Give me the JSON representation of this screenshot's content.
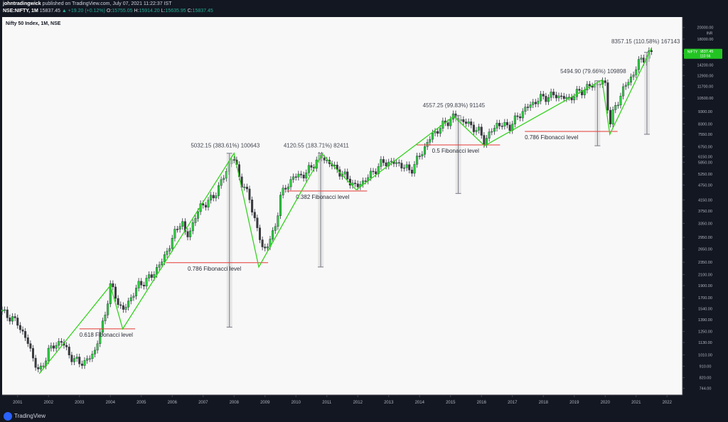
{
  "header": {
    "line1_user": "johntradingwick",
    "line1_rest": " published on TradingView.com, July 07, 2021 11:22:37 IST",
    "symbol": "NSE:NIFTY, 1M",
    "last": "15837.45",
    "change": "▲ +19.20 (+0.12%)",
    "open_label": "O:",
    "open": "15755.05",
    "high_label": "H:",
    "high": "15914.20",
    "low_label": "L:",
    "low": "15635.95",
    "close_label": "C:",
    "close": "15837.45"
  },
  "chart_data": {
    "type": "candlestick",
    "title": "Nifty 50 Index, 1M, NSE",
    "y_scale": "log",
    "ylim": [
      700,
      22000
    ],
    "y_axis_currency": "INR",
    "x_labels": [
      "2001",
      "2002",
      "2003",
      "2004",
      "2005",
      "2006",
      "2007",
      "2008",
      "2009",
      "2010",
      "2011",
      "2012",
      "2013",
      "2014",
      "2015",
      "2016",
      "2017",
      "2018",
      "2019",
      "2020",
      "2021",
      "2022"
    ],
    "xlim": [
      2000.5,
      2022.5
    ],
    "y_ticks": [
      "20000.00",
      "18000.00",
      "15800.00",
      "14200.00",
      "12900.00",
      "11700.00",
      "10500.00",
      "9300.00",
      "8300.00",
      "7550.00",
      "6750.00",
      "6150.00",
      "5850.00",
      "5250.00",
      "4750.00",
      "4150.00",
      "3750.00",
      "3350.00",
      "2950.00",
      "2650.00",
      "2350.00",
      "2100.00",
      "1900.00",
      "1700.00",
      "1540.00",
      "1390.00",
      "1250.00",
      "1130.00",
      "1010.00",
      "910.00",
      "820.00",
      "744.00"
    ],
    "last_price_label": "15837.45",
    "last_price_sub": "110 56",
    "price_axis_tag": "NIFTY",
    "price_path": [
      [
        2000.5,
        1500
      ],
      [
        2001.0,
        1350
      ],
      [
        2001.3,
        1150
      ],
      [
        2001.7,
        850
      ],
      [
        2002.0,
        1050
      ],
      [
        2002.4,
        1150
      ],
      [
        2002.8,
        960
      ],
      [
        2003.2,
        940
      ],
      [
        2003.5,
        1050
      ],
      [
        2003.8,
        1400
      ],
      [
        2004.0,
        1900
      ],
      [
        2004.4,
        1500
      ],
      [
        2004.6,
        1650
      ],
      [
        2004.9,
        1900
      ],
      [
        2005.3,
        2050
      ],
      [
        2005.7,
        2400
      ],
      [
        2006.0,
        2900
      ],
      [
        2006.3,
        3500
      ],
      [
        2006.45,
        2900
      ],
      [
        2006.9,
        3900
      ],
      [
        2007.3,
        4200
      ],
      [
        2007.7,
        5200
      ],
      [
        2007.95,
        6250
      ],
      [
        2008.2,
        5000
      ],
      [
        2008.5,
        4200
      ],
      [
        2008.8,
        3000
      ],
      [
        2008.95,
        2600
      ],
      [
        2009.3,
        3100
      ],
      [
        2009.5,
        4300
      ],
      [
        2009.9,
        5100
      ],
      [
        2010.3,
        5250
      ],
      [
        2010.7,
        6000
      ],
      [
        2010.85,
        6150
      ],
      [
        2011.3,
        5500
      ],
      [
        2011.7,
        5000
      ],
      [
        2011.95,
        4650
      ],
      [
        2012.4,
        5200
      ],
      [
        2012.8,
        5850
      ],
      [
        2013.3,
        5800
      ],
      [
        2013.7,
        5400
      ],
      [
        2014.0,
        6200
      ],
      [
        2014.4,
        7500
      ],
      [
        2014.8,
        8300
      ],
      [
        2015.1,
        8850
      ],
      [
        2015.5,
        8400
      ],
      [
        2015.9,
        7800
      ],
      [
        2016.1,
        7100
      ],
      [
        2016.5,
        8300
      ],
      [
        2016.9,
        8100
      ],
      [
        2017.4,
        9500
      ],
      [
        2017.9,
        10500
      ],
      [
        2018.4,
        10800
      ],
      [
        2018.8,
        10400
      ],
      [
        2019.1,
        11000
      ],
      [
        2019.5,
        11700
      ],
      [
        2019.9,
        12100
      ],
      [
        2020.0,
        11900
      ],
      [
        2020.15,
        8300
      ],
      [
        2020.3,
        9500
      ],
      [
        2020.6,
        11500
      ],
      [
        2020.9,
        13000
      ],
      [
        2021.1,
        14700
      ],
      [
        2021.5,
        15837
      ]
    ],
    "swing_lines": [
      [
        [
          2001.7,
          850
        ],
        [
          2004.0,
          1900
        ],
        [
          2004.4,
          1280
        ],
        [
          2008.0,
          6350
        ],
        [
          2008.8,
          2250
        ],
        [
          2010.85,
          6300
        ],
        [
          2011.95,
          4550
        ],
        [
          2015.1,
          8900
        ],
        [
          2016.1,
          6800
        ],
        [
          2019.9,
          12400
        ],
        [
          2020.15,
          7550
        ],
        [
          2021.5,
          16600
        ]
      ]
    ],
    "measurements": [
      {
        "x": 2007.85,
        "y_from": 1300,
        "y_to": 6350,
        "label": "5032.15 (383.61%) 100643",
        "label_x": 2006.6,
        "label_y": 6700
      },
      {
        "x": 2010.8,
        "y_from": 2250,
        "y_to": 6350,
        "label": "4120.55 (183.71%) 82411",
        "label_x": 2009.6,
        "label_y": 6700
      },
      {
        "x": 2015.25,
        "y_from": 4400,
        "y_to": 8950,
        "label": "4557.25 (99.83%) 91145",
        "label_x": 2014.1,
        "label_y": 9650
      },
      {
        "x": 2019.75,
        "y_from": 6800,
        "y_to": 12300,
        "label": "5494.90 (79.66%) 109898",
        "label_x": 2018.55,
        "label_y": 13200
      },
      {
        "x": 2021.35,
        "y_from": 7550,
        "y_to": 15950,
        "label": "8357.15 (110.58%) 167143",
        "label_x": 2020.2,
        "label_y": 17300
      }
    ],
    "fib_levels": [
      {
        "label": "0.618 Fibonacci level",
        "y": 1280,
        "x_from": 2003.0,
        "x_to": 2004.8,
        "label_x": 2003.0
      },
      {
        "label": "0.786 Fibonacci level",
        "y": 2340,
        "x_from": 2005.8,
        "x_to": 2009.1,
        "label_x": 2006.5
      },
      {
        "label": "0.382 Fibonacci level",
        "y": 4500,
        "x_from": 2009.7,
        "x_to": 2012.3,
        "label_x": 2010.0
      },
      {
        "label": "0.5 Fibonacci level",
        "y": 6850,
        "x_from": 2013.9,
        "x_to": 2016.6,
        "label_x": 2014.4
      },
      {
        "label": "0.786 Fibonacci level",
        "y": 7750,
        "x_from": 2017.4,
        "x_to": 2020.4,
        "label_x": 2017.4
      }
    ],
    "colors": {
      "up": "#2ecc40",
      "down": "#3a3a3a",
      "swing": "#34d31f",
      "fib": "#e53935",
      "measure": "#787b86",
      "background": "#f8f8f8"
    }
  },
  "footer": {
    "brand": "TradingView"
  }
}
